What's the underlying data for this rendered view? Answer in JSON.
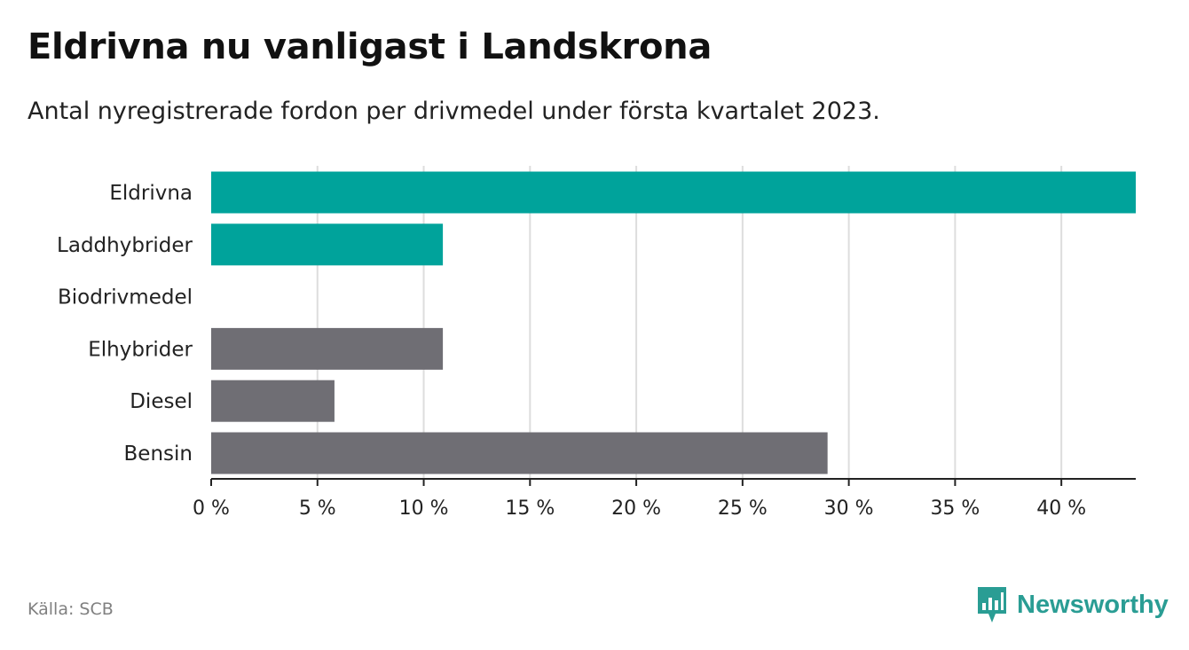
{
  "title": "Eldrivna nu vanligast i Landskrona",
  "subtitle": "Antal nyregistrerade fordon per drivmedel under första kvartalet 2023.",
  "source": "Källa: SCB",
  "brand": {
    "name": "Newsworthy",
    "icon": "newsworthy-logo-icon"
  },
  "colors": {
    "highlight": "#00a39b",
    "other": "#6f6e74",
    "grid": "#dddddd",
    "axis": "#222222"
  },
  "chart_data": {
    "type": "bar",
    "orientation": "horizontal",
    "categories": [
      "Eldrivna",
      "Laddhybrider",
      "Biodrivmedel",
      "Elhybrider",
      "Diesel",
      "Bensin"
    ],
    "values": [
      43.5,
      10.9,
      0,
      10.9,
      5.8,
      29.0
    ],
    "highlight": [
      true,
      true,
      true,
      false,
      false,
      false
    ],
    "unit": "%",
    "xlim": [
      0,
      43.5
    ],
    "xticks": [
      0,
      5,
      10,
      15,
      20,
      25,
      30,
      35,
      40
    ],
    "xtick_labels": [
      "0 %",
      "5 %",
      "10 %",
      "15 %",
      "20 %",
      "25 %",
      "30 %",
      "35 %",
      "40 %"
    ],
    "grid": true,
    "legend": "none"
  }
}
